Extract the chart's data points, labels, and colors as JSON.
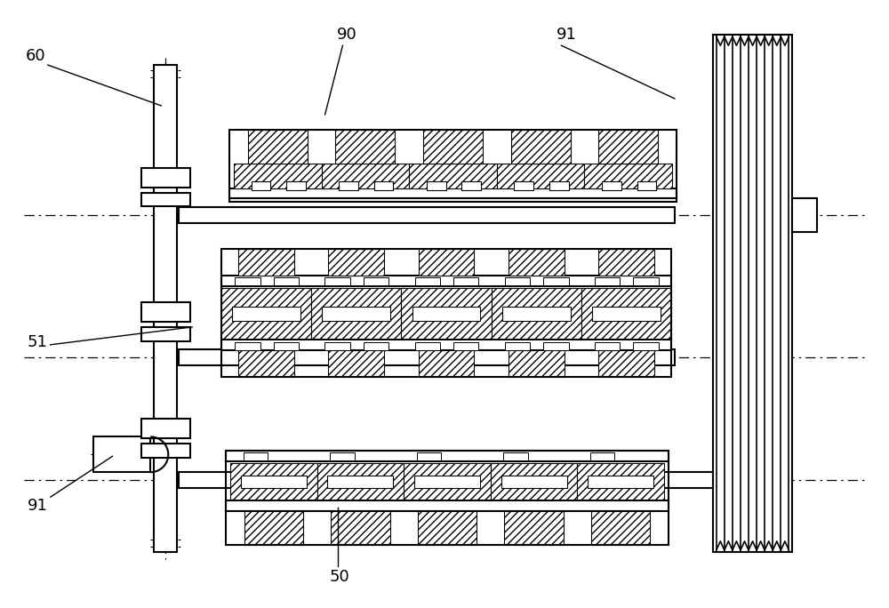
{
  "bg_color": "#ffffff",
  "line_color": "#000000",
  "fig_width": 10.0,
  "fig_height": 6.84,
  "labels": [
    "60",
    "90",
    "91",
    "51",
    "91",
    "50"
  ],
  "font_size": 13
}
